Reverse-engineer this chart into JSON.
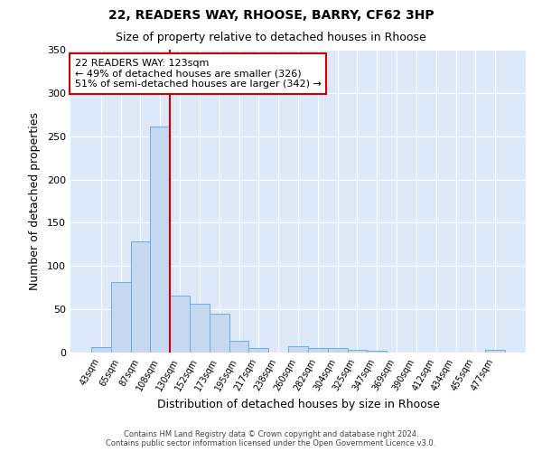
{
  "title1": "22, READERS WAY, RHOOSE, BARRY, CF62 3HP",
  "title2": "Size of property relative to detached houses in Rhoose",
  "xlabel": "Distribution of detached houses by size in Rhoose",
  "ylabel": "Number of detached properties",
  "categories": [
    "43sqm",
    "65sqm",
    "87sqm",
    "108sqm",
    "130sqm",
    "152sqm",
    "173sqm",
    "195sqm",
    "217sqm",
    "238sqm",
    "260sqm",
    "282sqm",
    "304sqm",
    "325sqm",
    "347sqm",
    "369sqm",
    "390sqm",
    "412sqm",
    "434sqm",
    "455sqm",
    "477sqm"
  ],
  "values": [
    6,
    82,
    129,
    261,
    66,
    56,
    45,
    14,
    5,
    0,
    7,
    5,
    5,
    3,
    2,
    0,
    0,
    0,
    0,
    0,
    3
  ],
  "bar_color": "#c5d8f0",
  "bar_edge_color": "#6aaee0",
  "vline_x": 3.5,
  "vline_color": "#cc0000",
  "annotation_text": "22 READERS WAY: 123sqm\n← 49% of detached houses are smaller (326)\n51% of semi-detached houses are larger (342) →",
  "annotation_box_color": "#ffffff",
  "annotation_box_edge": "#cc0000",
  "plot_bg_color": "#dde9f8",
  "grid_color": "#ffffff",
  "footer_line1": "Contains HM Land Registry data © Crown copyright and database right 2024.",
  "footer_line2": "Contains public sector information licensed under the Open Government Licence v3.0.",
  "ylim": [
    0,
    350
  ],
  "yticks": [
    0,
    50,
    100,
    150,
    200,
    250,
    300,
    350
  ],
  "title1_fontsize": 10,
  "title2_fontsize": 9
}
